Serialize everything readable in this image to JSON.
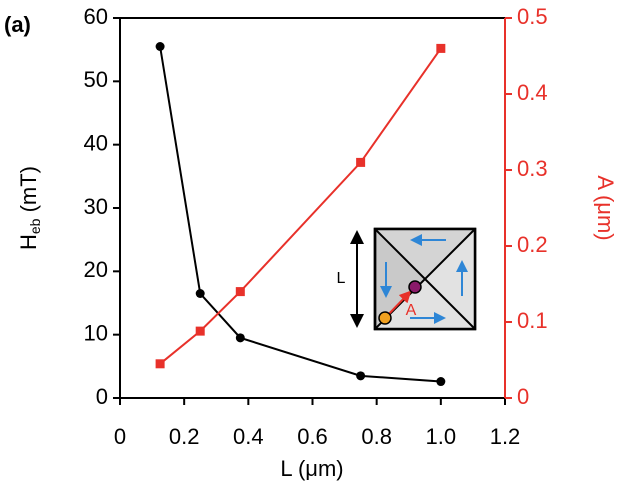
{
  "chart_data": {
    "type": "line",
    "panel_label": "(a)",
    "x_label": "L (μm)",
    "y_label": [
      "H",
      "eb",
      " (mT)"
    ],
    "y2_label": "A (μm)",
    "x": [
      0.125,
      0.25,
      0.375,
      0.75,
      1.0
    ],
    "series": [
      {
        "color": "#000000",
        "values": [
          55.5,
          16.5,
          9.5,
          3.5,
          2.6
        ]
      },
      {
        "color": "#e8312a",
        "axis": "y2",
        "values": [
          0.045,
          0.088,
          0.14,
          0.31,
          0.46
        ]
      }
    ],
    "xlim": [
      0,
      1.2
    ],
    "xticks": [
      0,
      0.2,
      0.4,
      0.6,
      0.8,
      {
        "value": 1.0,
        "label": "1.0"
      },
      1.2
    ],
    "ylim": [
      0,
      60
    ],
    "yticks": [
      0,
      10,
      20,
      30,
      40,
      50,
      60
    ],
    "y2lim": [
      0,
      0.5
    ],
    "y2ticks": [
      0,
      0.1,
      0.2,
      0.3,
      0.4,
      0.5
    ],
    "inset": {
      "length_label": "L",
      "arrow_label": "A"
    }
  }
}
